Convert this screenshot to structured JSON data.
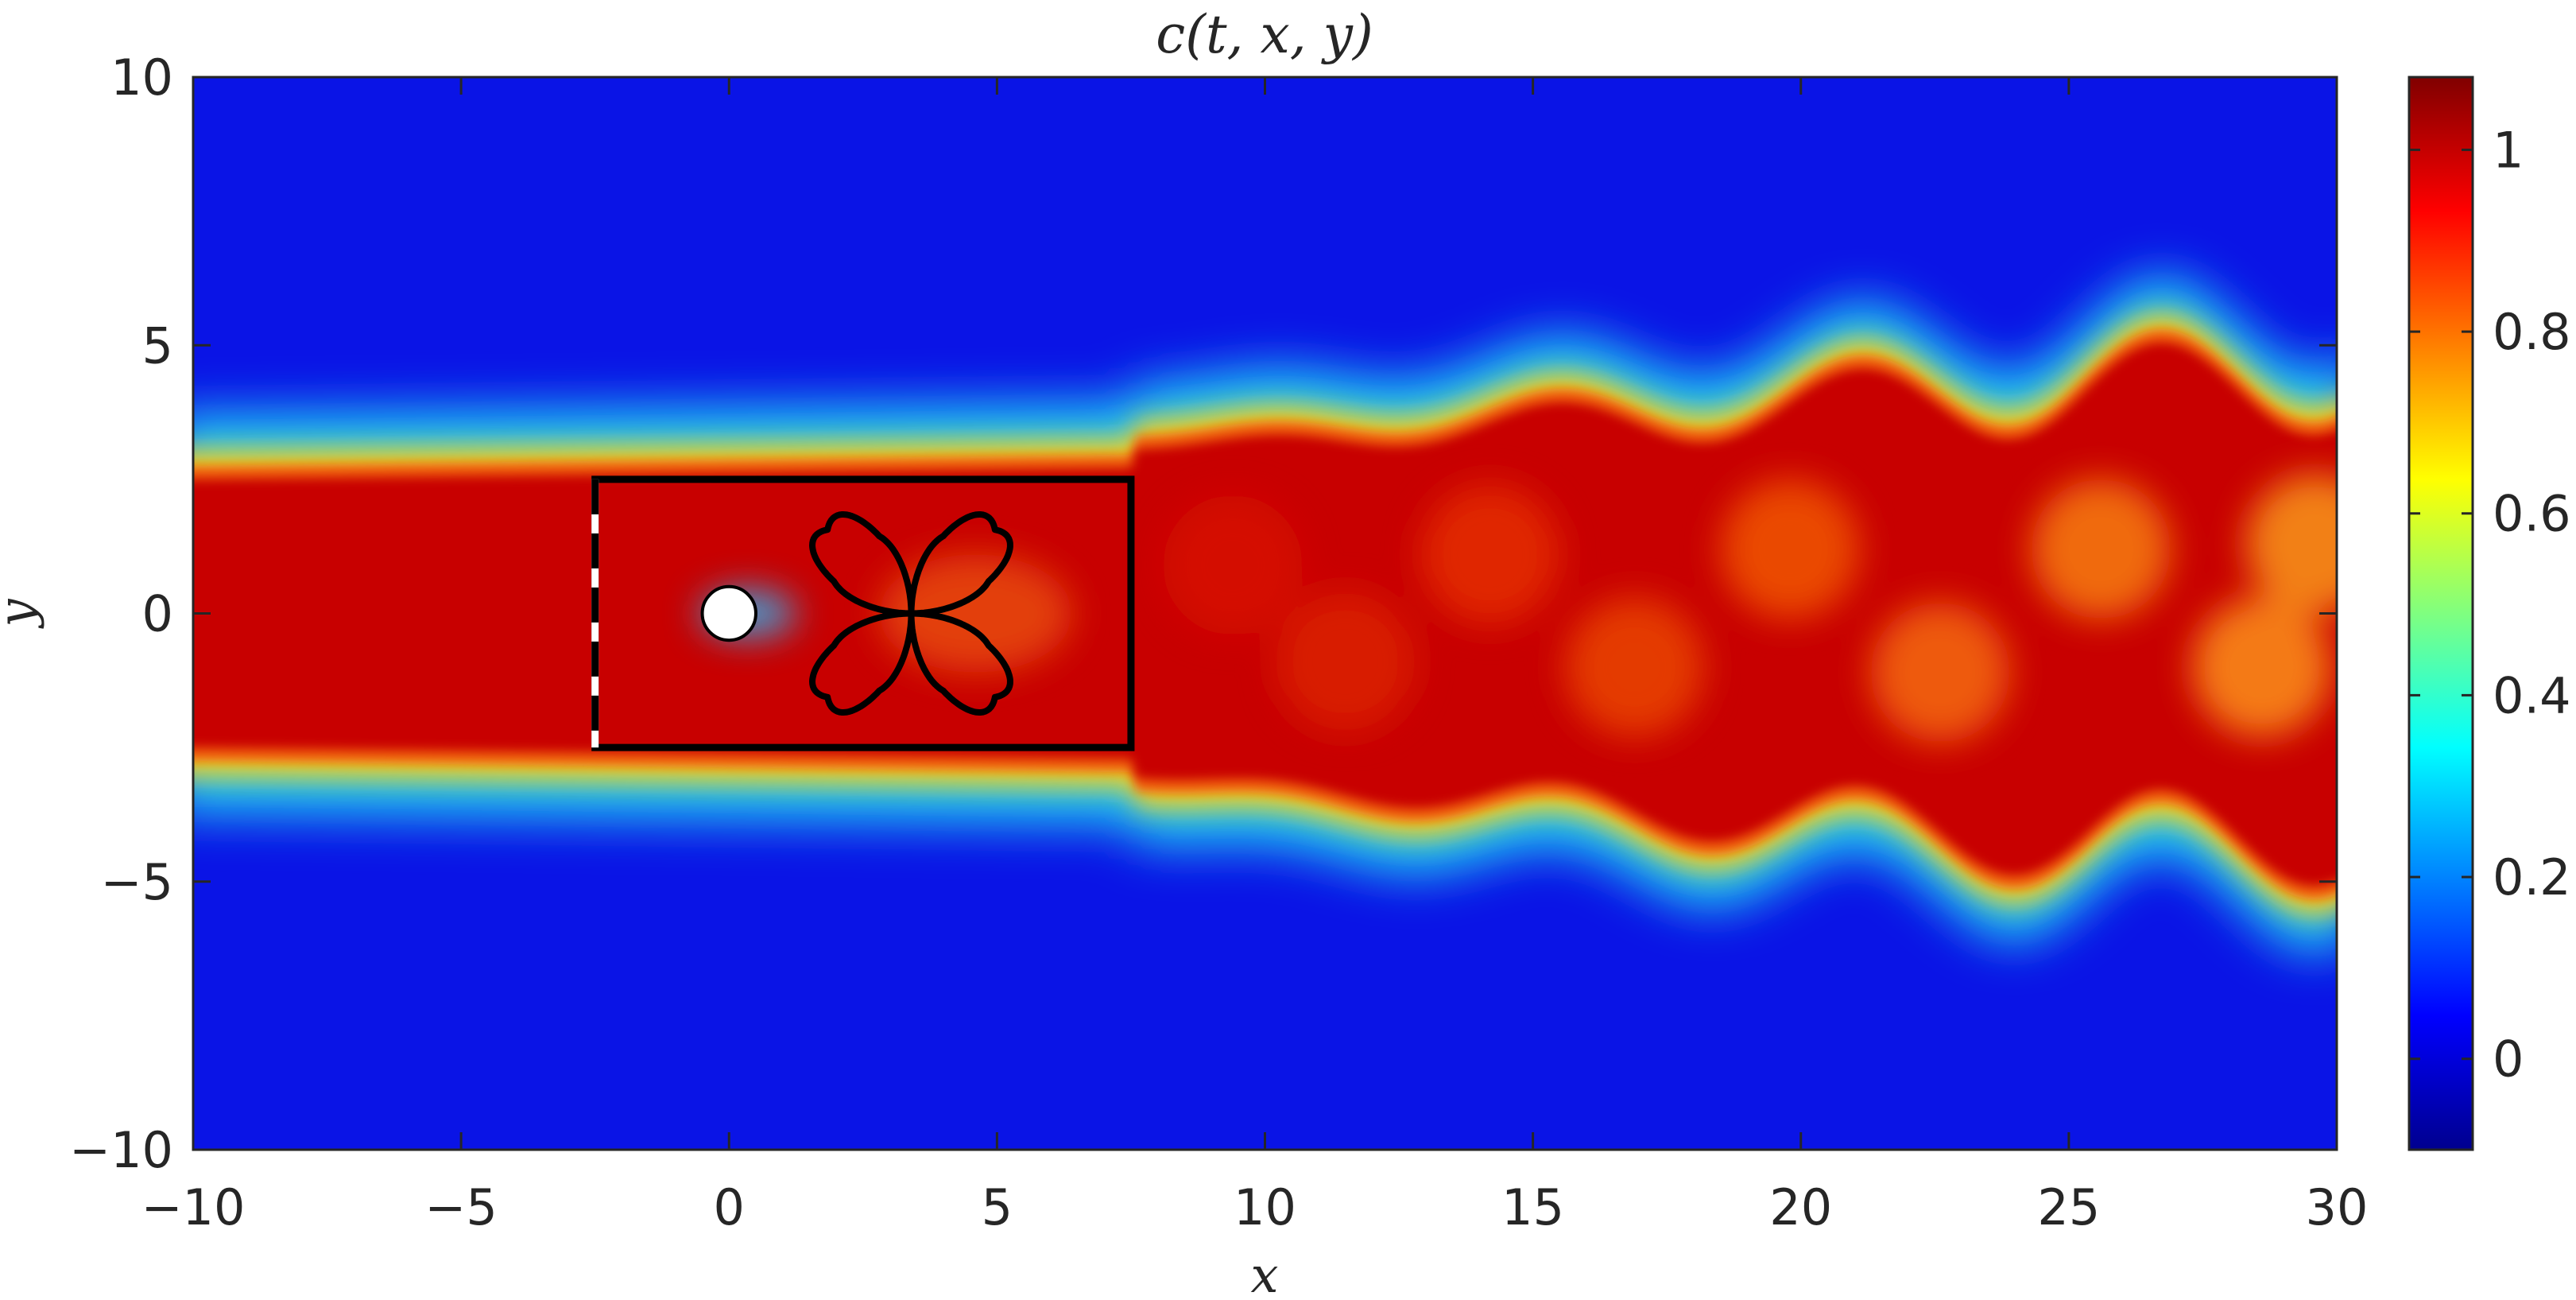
{
  "chart_data": {
    "type": "heatmap",
    "title": "c(t, x, y)",
    "xlabel": "x",
    "ylabel": "y",
    "xlim": [
      -10,
      30
    ],
    "ylim": [
      -10,
      10
    ],
    "xticks": [
      "−10",
      "−5",
      "0",
      "5",
      "10",
      "15",
      "20",
      "25",
      "30"
    ],
    "yticks": [
      "10",
      "5",
      "0",
      "−5",
      "−10"
    ],
    "colorbar": {
      "limits": [
        -0.1,
        1.08
      ],
      "ticks": [
        "1",
        "0.8",
        "0.6",
        "0.4",
        "0.2",
        "0"
      ],
      "colormap": "jet"
    },
    "field": {
      "inlet_band_halfwidth": 2.5,
      "background_value": 0.0,
      "core_value": 1.0,
      "wake_amplitude_growth": "increasing downstream",
      "wake_core_value_at_x30": 0.78
    },
    "cylinder": {
      "center": [
        0,
        0
      ],
      "radius": 0.5
    },
    "control_box": {
      "x": [
        -2.5,
        7.5
      ],
      "y": [
        -2.5,
        2.5
      ]
    },
    "inlet_dashed_line": {
      "x": -2.5,
      "y": [
        -2.5,
        2.5
      ]
    },
    "rose_curve": {
      "center": [
        3.4,
        0
      ],
      "petals": 4,
      "radius": 2.4
    },
    "colors": {
      "background": "#0a14e6",
      "core": "#c80000",
      "box_stroke": "#000000",
      "cylinder_fill": "#ffffff"
    }
  }
}
